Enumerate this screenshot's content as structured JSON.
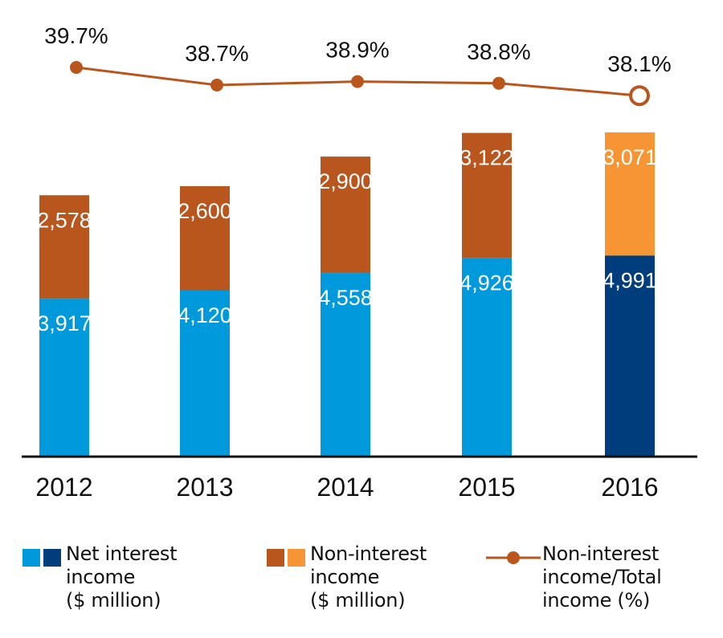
{
  "chart_data": {
    "type": "bar",
    "stacked": true,
    "categories": [
      "2012",
      "2013",
      "2014",
      "2015",
      "2016"
    ],
    "series": [
      {
        "name": "Net interest income ($ million)",
        "values": [
          3917,
          4120,
          4558,
          4926,
          4991
        ],
        "labels": [
          "3,917",
          "4,120",
          "4,558",
          "4,926",
          "4,991"
        ],
        "color": "#0099dc",
        "highlight_color": "#003d7c"
      },
      {
        "name": "Non-interest income ($ million)",
        "values": [
          2578,
          2600,
          2900,
          3122,
          3071
        ],
        "labels": [
          "2,578",
          "2,600",
          "2,900",
          "3,122",
          "3,071"
        ],
        "color": "#b9561e",
        "highlight_color": "#f79433"
      }
    ],
    "line_series": {
      "name": "Non-interest income/Total income (%)",
      "values": [
        39.7,
        38.7,
        38.9,
        38.8,
        38.1
      ],
      "labels": [
        "39.7%",
        "38.7%",
        "38.9%",
        "38.8%",
        "38.1%"
      ],
      "color": "#b9561e"
    },
    "highlight_category": "2016",
    "ylim": [
      0,
      8200
    ],
    "grid": false,
    "legend_position": "bottom"
  },
  "legend": [
    {
      "label": "Net interest\nincome\n($ million)",
      "colors": [
        "#0099dc",
        "#003d7c"
      ]
    },
    {
      "label": "Non-interest\nincome\n($ million)",
      "colors": [
        "#b9561e",
        "#f79433"
      ]
    },
    {
      "label": "Non-interest\nincome/Total\nincome (%)",
      "colors": [
        "#b9561e"
      ]
    }
  ]
}
